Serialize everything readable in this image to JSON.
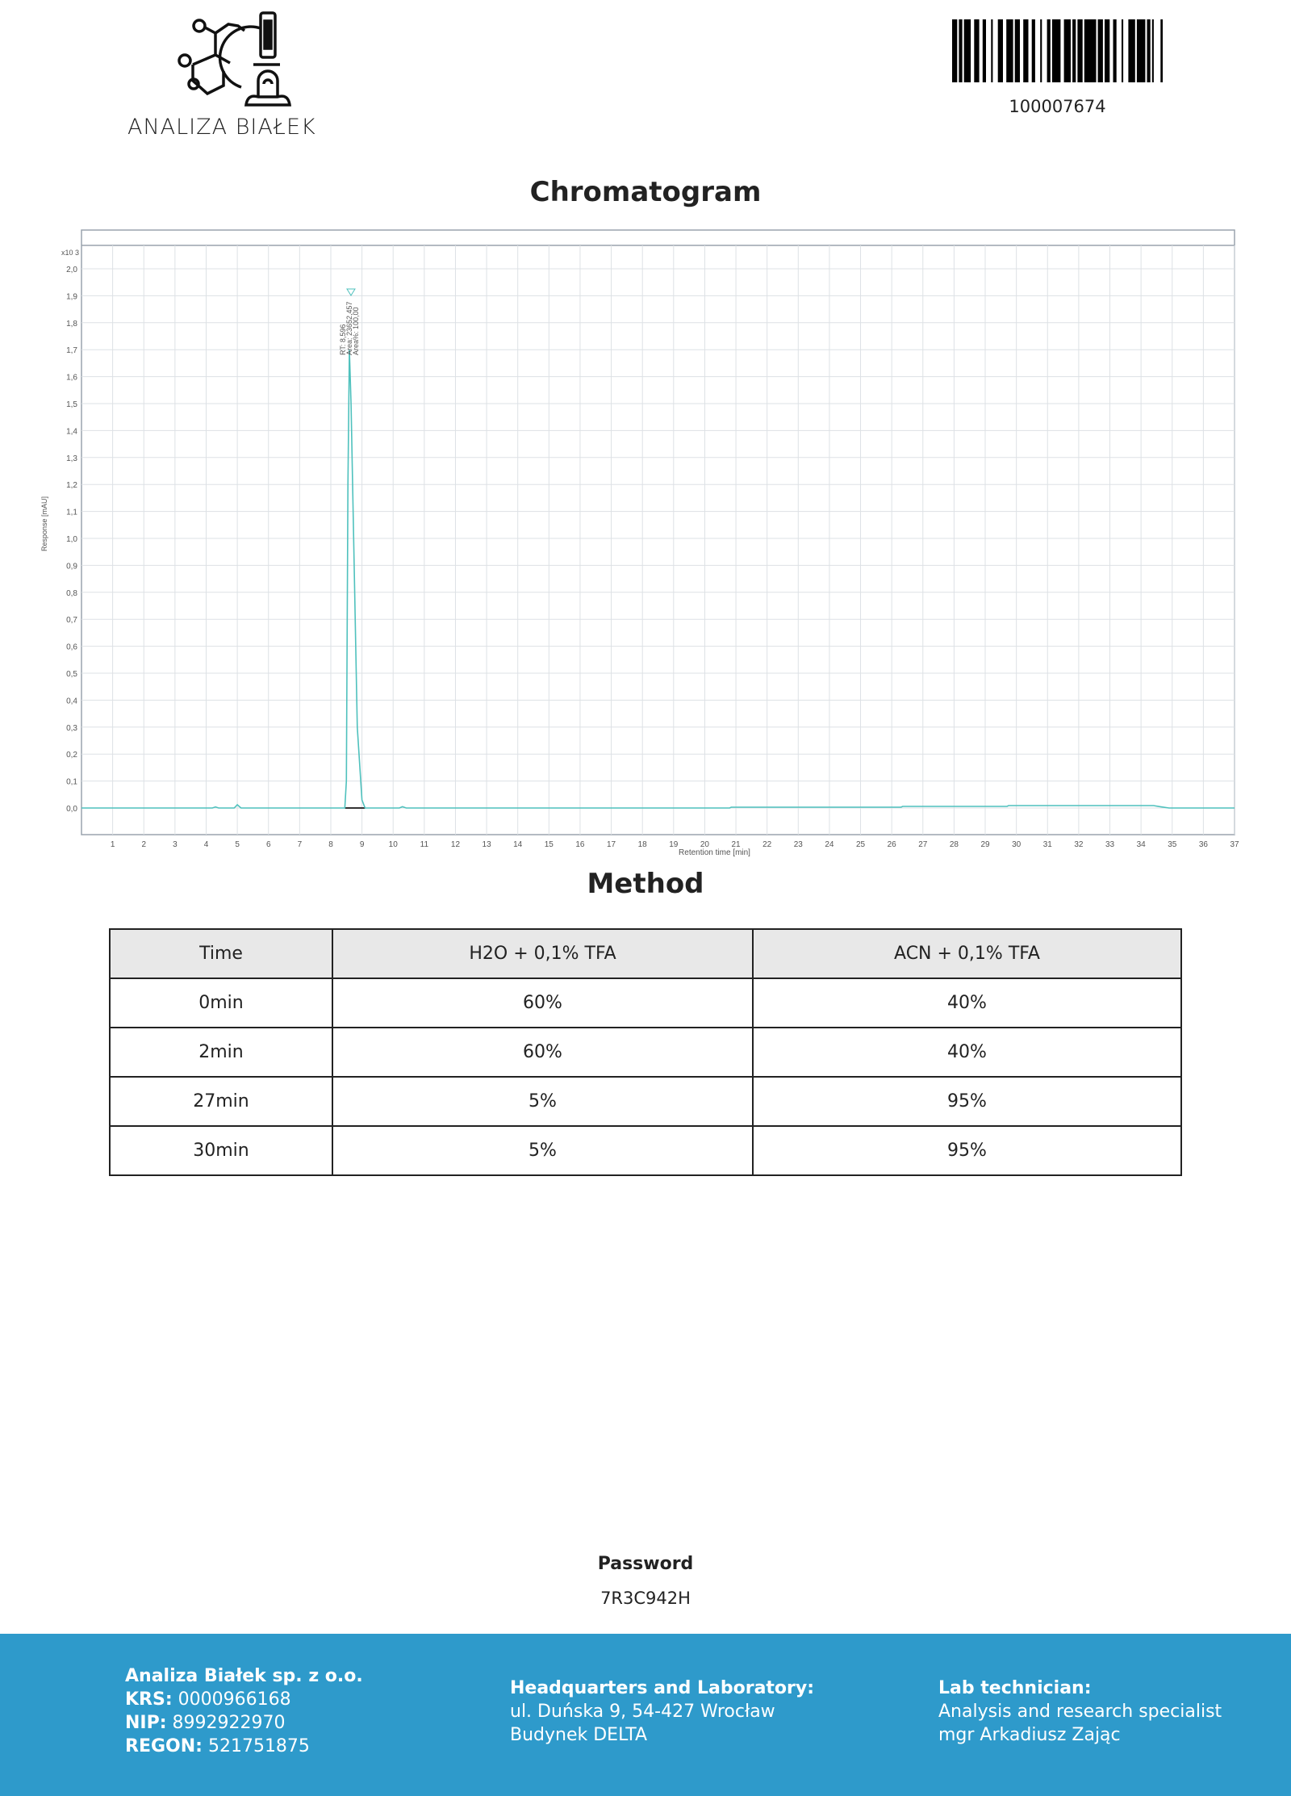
{
  "header": {
    "logo_text": "ANALIZA BIAŁEK",
    "barcode_number": "100007674"
  },
  "chromatogram_title": "Chromatogram",
  "chart_data": {
    "type": "line",
    "title": "",
    "xlabel": "Retention time [min]",
    "ylabel": "Response [mAU]",
    "y_multiplier_label": "x10 3",
    "xlim": [
      0,
      37
    ],
    "ylim": [
      -0.1,
      2.08
    ],
    "x_ticks": [
      "1",
      "2",
      "3",
      "4",
      "5",
      "6",
      "7",
      "8",
      "9",
      "10",
      "11",
      "12",
      "13",
      "14",
      "15",
      "16",
      "17",
      "18",
      "19",
      "20",
      "21",
      "22",
      "23",
      "24",
      "25",
      "26",
      "27",
      "28",
      "29",
      "30",
      "31",
      "32",
      "33",
      "34",
      "35",
      "36",
      "37"
    ],
    "y_ticks": [
      "0,0",
      "0,1",
      "0,2",
      "0,3",
      "0,4",
      "0,5",
      "0,6",
      "0,7",
      "0,8",
      "0,9",
      "1,0",
      "1,1",
      "1,2",
      "1,3",
      "1,4",
      "1,5",
      "1,6",
      "1,7",
      "1,8",
      "1,9",
      "2,0"
    ],
    "grid": true,
    "line_color": "#4fc1bd",
    "trace": {
      "x": [
        0,
        4.2,
        4.3,
        4.4,
        4.9,
        5.0,
        5.12,
        8.45,
        8.5,
        8.55,
        8.596,
        8.65,
        8.75,
        8.85,
        9.0,
        9.1,
        10.2,
        10.3,
        10.42,
        20.8,
        20.85,
        26.3,
        26.35,
        29.7,
        29.75,
        34.4,
        34.6,
        34.9,
        37
      ],
      "y": [
        0,
        0,
        0.004,
        0,
        0,
        0.012,
        0,
        0,
        0.1,
        1.2,
        1.7,
        1.5,
        0.9,
        0.3,
        0.03,
        0,
        0,
        0.005,
        0,
        0,
        0.003,
        0.003,
        0.006,
        0.006,
        0.009,
        0.009,
        0.005,
        0,
        0
      ]
    },
    "peaks": [
      {
        "rt_label": "RT: 8,596",
        "area_label": "Area: 23652,457",
        "area_pct_label": "Area%: 100,00",
        "rt": 8.596,
        "height": 1.7
      }
    ]
  },
  "method": {
    "title": "Method",
    "columns": [
      "Time",
      "H2O + 0,1% TFA",
      "ACN + 0,1% TFA"
    ],
    "rows": [
      [
        "0min",
        "60%",
        "40%"
      ],
      [
        "2min",
        "60%",
        "40%"
      ],
      [
        "27min",
        "5%",
        "95%"
      ],
      [
        "30min",
        "5%",
        "95%"
      ]
    ]
  },
  "password": {
    "label": "Password",
    "value": "7R3C942H"
  },
  "footer": {
    "company": "Analiza Białek sp. z o.o.",
    "krs_label": "KRS:",
    "krs": "0000966168",
    "nip_label": "NIP:",
    "nip": "8992922970",
    "regon_label": "REGON:",
    "regon": "521751875",
    "hq_title": "Headquarters and Laboratory:",
    "hq_line1": "ul. Duńska 9, 54-427 Wrocław",
    "hq_line2": "Budynek DELTA",
    "tech_title": "Lab technician:",
    "tech_line1": "Analysis and research specialist",
    "tech_line2": "mgr Arkadiusz Zając"
  },
  "colors": {
    "footer_bg": "#2e9acb",
    "trace": "#4fc1bd"
  }
}
